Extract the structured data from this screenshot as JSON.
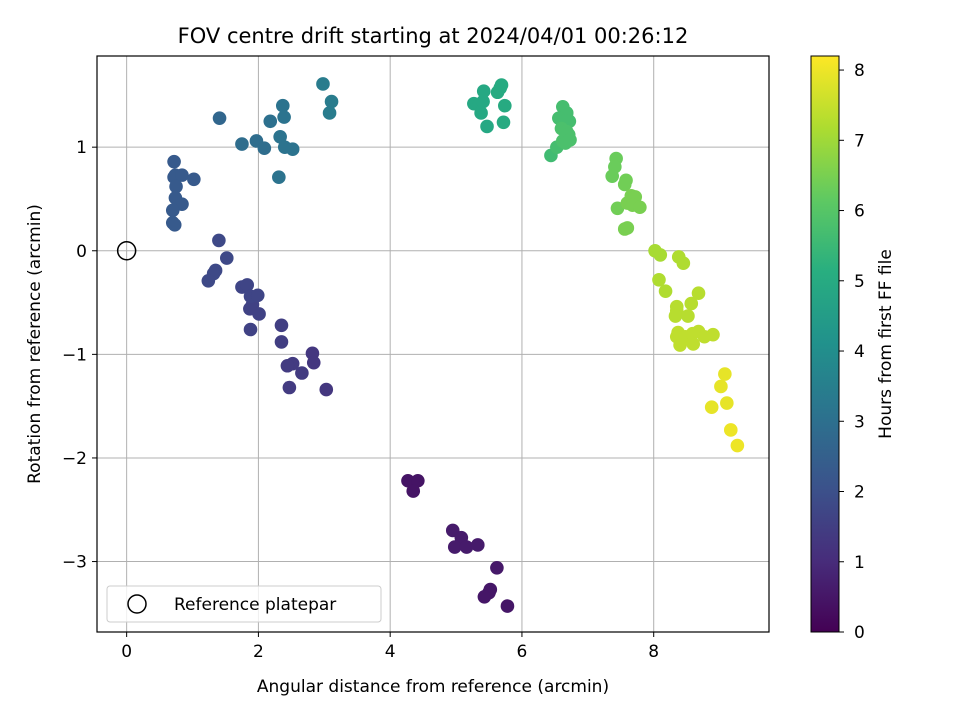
{
  "chart_data": {
    "type": "scatter",
    "title": "FOV centre drift starting at 2024/04/01 00:26:12",
    "xlabel": "Angular distance from reference (arcmin)",
    "ylabel": "Rotation from reference (arcmin)",
    "xlim": [
      -0.45,
      9.75
    ],
    "ylim": [
      -3.68,
      1.88
    ],
    "xticks": [
      0,
      2,
      4,
      6,
      8
    ],
    "yticks": [
      -3,
      -2,
      -1,
      0,
      1
    ],
    "grid": true,
    "legend_position": "lower-left",
    "legend_entries": [
      "Reference platepar"
    ],
    "reference_point": {
      "x": 0,
      "y": 0
    },
    "colorbar": {
      "label": "Hours from first FF file",
      "range": [
        0,
        8.2
      ],
      "ticks": [
        0,
        1,
        2,
        3,
        4,
        5,
        6,
        7,
        8
      ],
      "colormap": "viridis"
    },
    "points": [
      {
        "x": 4.27,
        "y": -2.22,
        "h": 0.45
      },
      {
        "x": 4.42,
        "y": -2.22,
        "h": 0.45
      },
      {
        "x": 4.35,
        "y": -2.32,
        "h": 0.45
      },
      {
        "x": 4.95,
        "y": -2.7,
        "h": 0.6
      },
      {
        "x": 5.08,
        "y": -2.77,
        "h": 0.6
      },
      {
        "x": 4.98,
        "y": -2.86,
        "h": 0.6
      },
      {
        "x": 5.16,
        "y": -2.86,
        "h": 0.6
      },
      {
        "x": 5.33,
        "y": -2.84,
        "h": 0.6
      },
      {
        "x": 5.62,
        "y": -3.06,
        "h": 0.55
      },
      {
        "x": 5.52,
        "y": -3.27,
        "h": 0.5
      },
      {
        "x": 5.5,
        "y": -3.3,
        "h": 0.5
      },
      {
        "x": 5.43,
        "y": -3.34,
        "h": 0.5
      },
      {
        "x": 5.78,
        "y": -3.43,
        "h": 0.5
      },
      {
        "x": 2.82,
        "y": -0.99,
        "h": 1.3
      },
      {
        "x": 2.84,
        "y": -1.08,
        "h": 1.3
      },
      {
        "x": 3.03,
        "y": -1.34,
        "h": 1.3
      },
      {
        "x": 2.52,
        "y": -1.09,
        "h": 1.4
      },
      {
        "x": 2.44,
        "y": -1.11,
        "h": 1.4
      },
      {
        "x": 2.66,
        "y": -1.18,
        "h": 1.4
      },
      {
        "x": 2.47,
        "y": -1.32,
        "h": 1.4
      },
      {
        "x": 2.35,
        "y": -0.72,
        "h": 1.5
      },
      {
        "x": 2.35,
        "y": -0.88,
        "h": 1.5
      },
      {
        "x": 1.91,
        "y": -0.52,
        "h": 1.6
      },
      {
        "x": 1.87,
        "y": -0.56,
        "h": 1.6
      },
      {
        "x": 2.01,
        "y": -0.61,
        "h": 1.6
      },
      {
        "x": 1.88,
        "y": -0.76,
        "h": 1.6
      },
      {
        "x": 1.75,
        "y": -0.35,
        "h": 1.7
      },
      {
        "x": 1.83,
        "y": -0.33,
        "h": 1.7
      },
      {
        "x": 1.88,
        "y": -0.44,
        "h": 1.7
      },
      {
        "x": 1.99,
        "y": -0.43,
        "h": 1.7
      },
      {
        "x": 1.4,
        "y": 0.1,
        "h": 1.8
      },
      {
        "x": 1.52,
        "y": -0.07,
        "h": 1.8
      },
      {
        "x": 1.35,
        "y": -0.19,
        "h": 1.8
      },
      {
        "x": 1.32,
        "y": -0.22,
        "h": 1.8
      },
      {
        "x": 1.24,
        "y": -0.29,
        "h": 1.8
      },
      {
        "x": 0.72,
        "y": 0.86,
        "h": 2.3
      },
      {
        "x": 0.74,
        "y": 0.73,
        "h": 2.3
      },
      {
        "x": 0.72,
        "y": 0.71,
        "h": 2.3
      },
      {
        "x": 0.84,
        "y": 0.73,
        "h": 2.3
      },
      {
        "x": 1.02,
        "y": 0.69,
        "h": 2.3
      },
      {
        "x": 0.75,
        "y": 0.62,
        "h": 2.3
      },
      {
        "x": 0.74,
        "y": 0.51,
        "h": 2.3
      },
      {
        "x": 0.84,
        "y": 0.45,
        "h": 2.3
      },
      {
        "x": 0.7,
        "y": 0.39,
        "h": 2.3
      },
      {
        "x": 0.7,
        "y": 0.27,
        "h": 2.3
      },
      {
        "x": 0.73,
        "y": 0.25,
        "h": 2.3
      },
      {
        "x": 1.41,
        "y": 1.28,
        "h": 2.7
      },
      {
        "x": 1.75,
        "y": 1.03,
        "h": 2.9
      },
      {
        "x": 1.97,
        "y": 1.06,
        "h": 2.9
      },
      {
        "x": 2.09,
        "y": 0.99,
        "h": 2.9
      },
      {
        "x": 2.18,
        "y": 1.25,
        "h": 3.0
      },
      {
        "x": 2.33,
        "y": 1.1,
        "h": 3.1
      },
      {
        "x": 2.37,
        "y": 1.4,
        "h": 3.1
      },
      {
        "x": 2.39,
        "y": 1.29,
        "h": 3.1
      },
      {
        "x": 2.4,
        "y": 1.0,
        "h": 3.1
      },
      {
        "x": 2.52,
        "y": 0.98,
        "h": 3.1
      },
      {
        "x": 2.31,
        "y": 0.71,
        "h": 3.1
      },
      {
        "x": 2.98,
        "y": 1.61,
        "h": 3.4
      },
      {
        "x": 3.11,
        "y": 1.44,
        "h": 3.4
      },
      {
        "x": 3.08,
        "y": 1.33,
        "h": 3.4
      },
      {
        "x": 5.27,
        "y": 1.42,
        "h": 4.9
      },
      {
        "x": 5.35,
        "y": 1.41,
        "h": 4.9
      },
      {
        "x": 5.42,
        "y": 1.54,
        "h": 4.9
      },
      {
        "x": 5.41,
        "y": 1.44,
        "h": 4.9
      },
      {
        "x": 5.38,
        "y": 1.33,
        "h": 4.9
      },
      {
        "x": 5.47,
        "y": 1.2,
        "h": 4.9
      },
      {
        "x": 5.63,
        "y": 1.53,
        "h": 5.0
      },
      {
        "x": 5.67,
        "y": 1.57,
        "h": 5.0
      },
      {
        "x": 5.69,
        "y": 1.6,
        "h": 5.0
      },
      {
        "x": 5.74,
        "y": 1.4,
        "h": 5.0
      },
      {
        "x": 5.72,
        "y": 1.24,
        "h": 5.0
      },
      {
        "x": 6.44,
        "y": 0.92,
        "h": 5.6
      },
      {
        "x": 6.53,
        "y": 1.0,
        "h": 5.7
      },
      {
        "x": 6.62,
        "y": 1.39,
        "h": 5.7
      },
      {
        "x": 6.68,
        "y": 1.33,
        "h": 5.7
      },
      {
        "x": 6.56,
        "y": 1.28,
        "h": 5.7
      },
      {
        "x": 6.65,
        "y": 1.25,
        "h": 5.7
      },
      {
        "x": 6.72,
        "y": 1.25,
        "h": 5.7
      },
      {
        "x": 6.6,
        "y": 1.18,
        "h": 5.8
      },
      {
        "x": 6.68,
        "y": 1.15,
        "h": 5.8
      },
      {
        "x": 6.71,
        "y": 1.12,
        "h": 5.8
      },
      {
        "x": 6.62,
        "y": 1.06,
        "h": 5.8
      },
      {
        "x": 6.66,
        "y": 1.04,
        "h": 5.8
      },
      {
        "x": 6.73,
        "y": 1.07,
        "h": 5.8
      },
      {
        "x": 7.43,
        "y": 0.89,
        "h": 6.3
      },
      {
        "x": 7.41,
        "y": 0.81,
        "h": 6.3
      },
      {
        "x": 7.37,
        "y": 0.72,
        "h": 6.3
      },
      {
        "x": 7.58,
        "y": 0.68,
        "h": 6.4
      },
      {
        "x": 7.56,
        "y": 0.64,
        "h": 6.4
      },
      {
        "x": 7.45,
        "y": 0.41,
        "h": 6.4
      },
      {
        "x": 7.6,
        "y": 0.46,
        "h": 6.5
      },
      {
        "x": 7.66,
        "y": 0.53,
        "h": 6.5
      },
      {
        "x": 7.72,
        "y": 0.52,
        "h": 6.5
      },
      {
        "x": 7.68,
        "y": 0.44,
        "h": 6.5
      },
      {
        "x": 7.79,
        "y": 0.42,
        "h": 6.5
      },
      {
        "x": 7.56,
        "y": 0.21,
        "h": 6.5
      },
      {
        "x": 7.6,
        "y": 0.22,
        "h": 6.5
      },
      {
        "x": 8.02,
        "y": 0.0,
        "h": 7.1
      },
      {
        "x": 8.1,
        "y": -0.04,
        "h": 7.1
      },
      {
        "x": 8.38,
        "y": -0.06,
        "h": 7.2
      },
      {
        "x": 8.45,
        "y": -0.12,
        "h": 7.2
      },
      {
        "x": 8.08,
        "y": -0.28,
        "h": 7.2
      },
      {
        "x": 8.18,
        "y": -0.39,
        "h": 7.2
      },
      {
        "x": 8.35,
        "y": -0.54,
        "h": 7.3
      },
      {
        "x": 8.35,
        "y": -0.58,
        "h": 7.3
      },
      {
        "x": 8.33,
        "y": -0.63,
        "h": 7.3
      },
      {
        "x": 8.57,
        "y": -0.51,
        "h": 7.3
      },
      {
        "x": 8.68,
        "y": -0.41,
        "h": 7.3
      },
      {
        "x": 8.52,
        "y": -0.63,
        "h": 7.3
      },
      {
        "x": 8.37,
        "y": -0.79,
        "h": 7.4
      },
      {
        "x": 8.35,
        "y": -0.83,
        "h": 7.4
      },
      {
        "x": 8.48,
        "y": -0.83,
        "h": 7.4
      },
      {
        "x": 8.59,
        "y": -0.8,
        "h": 7.4
      },
      {
        "x": 8.68,
        "y": -0.78,
        "h": 7.4
      },
      {
        "x": 8.77,
        "y": -0.83,
        "h": 7.4
      },
      {
        "x": 8.9,
        "y": -0.81,
        "h": 7.4
      },
      {
        "x": 8.4,
        "y": -0.91,
        "h": 7.4
      },
      {
        "x": 8.6,
        "y": -0.9,
        "h": 7.4
      },
      {
        "x": 9.08,
        "y": -1.19,
        "h": 7.9
      },
      {
        "x": 9.02,
        "y": -1.31,
        "h": 7.9
      },
      {
        "x": 8.88,
        "y": -1.51,
        "h": 7.9
      },
      {
        "x": 9.11,
        "y": -1.47,
        "h": 7.9
      },
      {
        "x": 9.17,
        "y": -1.73,
        "h": 8.0
      },
      {
        "x": 9.27,
        "y": -1.88,
        "h": 8.0
      }
    ]
  }
}
